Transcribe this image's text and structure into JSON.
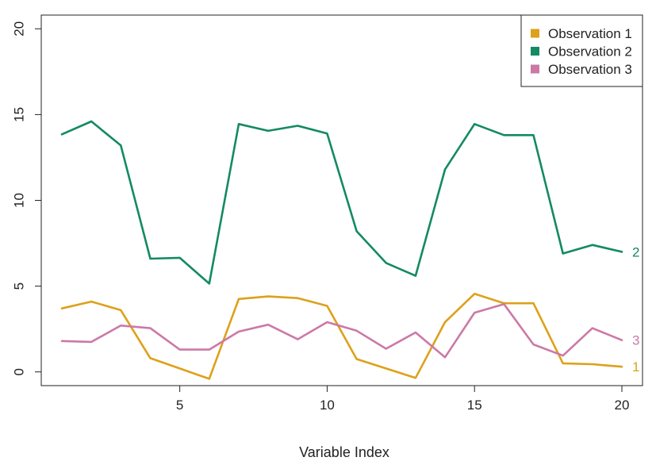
{
  "chart_data": {
    "type": "line",
    "xlabel": "Variable Index",
    "ylabel": "",
    "xlim": [
      0.3,
      20.7
    ],
    "ylim": [
      -0.8,
      20.8
    ],
    "xticks": [
      5,
      10,
      15,
      20
    ],
    "yticks": [
      0,
      5,
      10,
      15,
      20
    ],
    "grid": false,
    "legend_position": "top-right",
    "x": [
      1,
      2,
      3,
      4,
      5,
      6,
      7,
      8,
      9,
      10,
      11,
      12,
      13,
      14,
      15,
      16,
      17,
      18,
      19,
      20
    ],
    "series": [
      {
        "name": "Observation 1",
        "end_label": "1",
        "color": "#DDA11A",
        "values": [
          3.7,
          4.1,
          3.6,
          0.8,
          0.2,
          -0.4,
          4.25,
          4.4,
          4.3,
          3.85,
          0.75,
          0.2,
          -0.35,
          2.9,
          4.55,
          4.0,
          4.0,
          0.5,
          0.45,
          0.3
        ]
      },
      {
        "name": "Observation 2",
        "end_label": "2",
        "color": "#138A62",
        "values": [
          13.85,
          14.6,
          13.2,
          6.6,
          6.65,
          5.15,
          14.45,
          14.05,
          14.35,
          13.9,
          8.2,
          6.35,
          5.6,
          11.8,
          14.45,
          13.8,
          13.8,
          6.9,
          7.4,
          7.0
        ]
      },
      {
        "name": "Observation 3",
        "end_label": "3",
        "color": "#CC79A7",
        "values": [
          1.8,
          1.75,
          2.7,
          2.55,
          1.3,
          1.3,
          2.35,
          2.75,
          1.9,
          2.9,
          2.4,
          1.35,
          2.3,
          0.85,
          3.45,
          3.95,
          1.6,
          0.95,
          2.55,
          1.85
        ]
      }
    ]
  }
}
